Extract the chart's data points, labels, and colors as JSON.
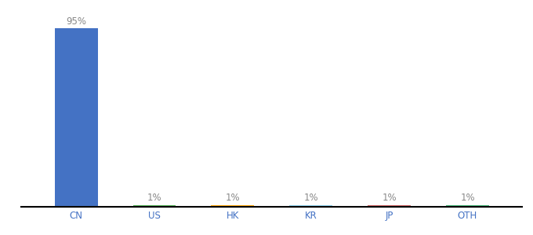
{
  "categories": [
    "CN",
    "US",
    "HK",
    "KR",
    "JP",
    "OTH"
  ],
  "values": [
    95,
    1,
    1,
    1,
    1,
    1
  ],
  "labels": [
    "95%",
    "1%",
    "1%",
    "1%",
    "1%",
    "1%"
  ],
  "bar_colors": [
    "#4472C4",
    "#4CAF50",
    "#FFA500",
    "#87CEEB",
    "#CD5C5C",
    "#3CB371"
  ],
  "ylim": [
    0,
    100
  ],
  "background_color": "#ffffff",
  "label_fontsize": 8.5,
  "tick_fontsize": 8.5,
  "label_color_CN": "#888888",
  "label_color_US": "#888888",
  "label_color_HK": "#888888",
  "label_color_KR": "#87CEEB",
  "label_color_JP": "#CD5C5C",
  "label_color_OTH": "#888888",
  "tick_color": "#4472C4"
}
